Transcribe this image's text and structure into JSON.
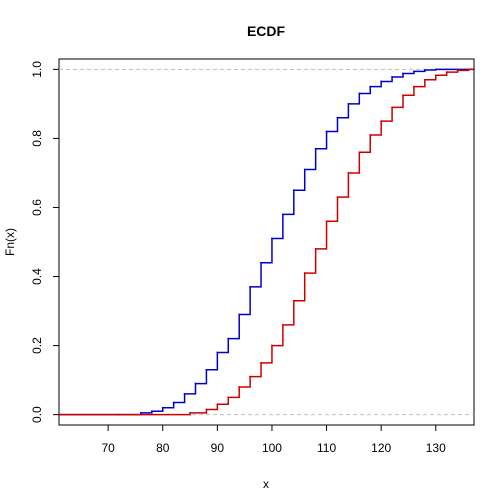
{
  "chart_data": {
    "type": "line",
    "title": "ECDF",
    "xlabel": "x",
    "ylabel": "Fn(x)",
    "xlim": [
      61,
      137
    ],
    "ylim": [
      -0.03,
      1.03
    ],
    "x_ticks": [
      70,
      80,
      90,
      100,
      110,
      120,
      130
    ],
    "y_ticks": [
      0.0,
      0.2,
      0.4,
      0.6,
      0.8,
      1.0
    ],
    "x_tick_labels": [
      "70",
      "80",
      "90",
      "100",
      "110",
      "120",
      "130"
    ],
    "y_tick_labels": [
      "0.0",
      "0.2",
      "0.4",
      "0.6",
      "0.8",
      "1.0"
    ],
    "reference_lines": [
      0,
      1
    ],
    "reference_line_color": "#bebebe",
    "grid": false,
    "step": true,
    "series": [
      {
        "color": "#0000cd",
        "x": [
          72,
          76,
          78,
          80,
          82,
          84,
          86,
          88,
          90,
          92,
          94,
          96,
          98,
          100,
          102,
          104,
          106,
          108,
          110,
          112,
          114,
          116,
          118,
          120,
          122,
          124,
          126,
          128,
          130,
          132,
          137
        ],
        "y": [
          0.0,
          0.005,
          0.01,
          0.02,
          0.035,
          0.06,
          0.09,
          0.13,
          0.18,
          0.22,
          0.29,
          0.37,
          0.44,
          0.51,
          0.58,
          0.65,
          0.71,
          0.77,
          0.82,
          0.86,
          0.9,
          0.93,
          0.95,
          0.965,
          0.978,
          0.988,
          0.994,
          0.998,
          1.0,
          1.0,
          1.0
        ]
      },
      {
        "color": "#cd0000",
        "x": [
          81,
          85,
          88,
          90,
          92,
          94,
          96,
          98,
          100,
          102,
          104,
          106,
          108,
          110,
          112,
          114,
          116,
          118,
          120,
          122,
          124,
          126,
          128,
          130,
          132,
          134,
          136
        ],
        "y": [
          0.0,
          0.005,
          0.015,
          0.03,
          0.05,
          0.08,
          0.11,
          0.15,
          0.2,
          0.26,
          0.33,
          0.41,
          0.48,
          0.56,
          0.63,
          0.7,
          0.76,
          0.81,
          0.85,
          0.89,
          0.925,
          0.95,
          0.97,
          0.983,
          0.992,
          0.997,
          1.0
        ]
      }
    ]
  }
}
